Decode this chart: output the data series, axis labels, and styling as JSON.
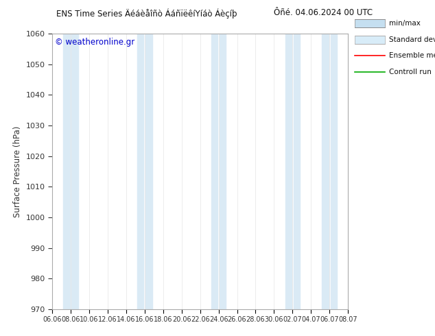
{
  "title_left": "ENS Time Series Äéáèåîñò ÁáñïëêíYíáò Áèçíþ",
  "title_right": "Ôñé. 04.06.2024 00 UTC",
  "ylabel": "Surface Pressure (hPa)",
  "watermark": "© weatheronline.gr",
  "ylim": [
    970,
    1060
  ],
  "yticks": [
    970,
    980,
    990,
    1000,
    1010,
    1020,
    1030,
    1040,
    1050,
    1060
  ],
  "xtick_labels": [
    "06.06",
    "08.06",
    "10.06",
    "12.06",
    "14.06",
    "16.06",
    "18.06",
    "20.06",
    "22.06",
    "24.06",
    "26.06",
    "28.06",
    "30.06",
    "02.07",
    "04.07",
    "06.07",
    "08.07"
  ],
  "bg_color": "#ffffff",
  "plot_bg_color": "#ffffff",
  "band_color": "#daeaf5",
  "title_color": "#111111",
  "watermark_color": "#0000cc",
  "spine_color": "#aaaaaa",
  "tick_color": "#333333"
}
